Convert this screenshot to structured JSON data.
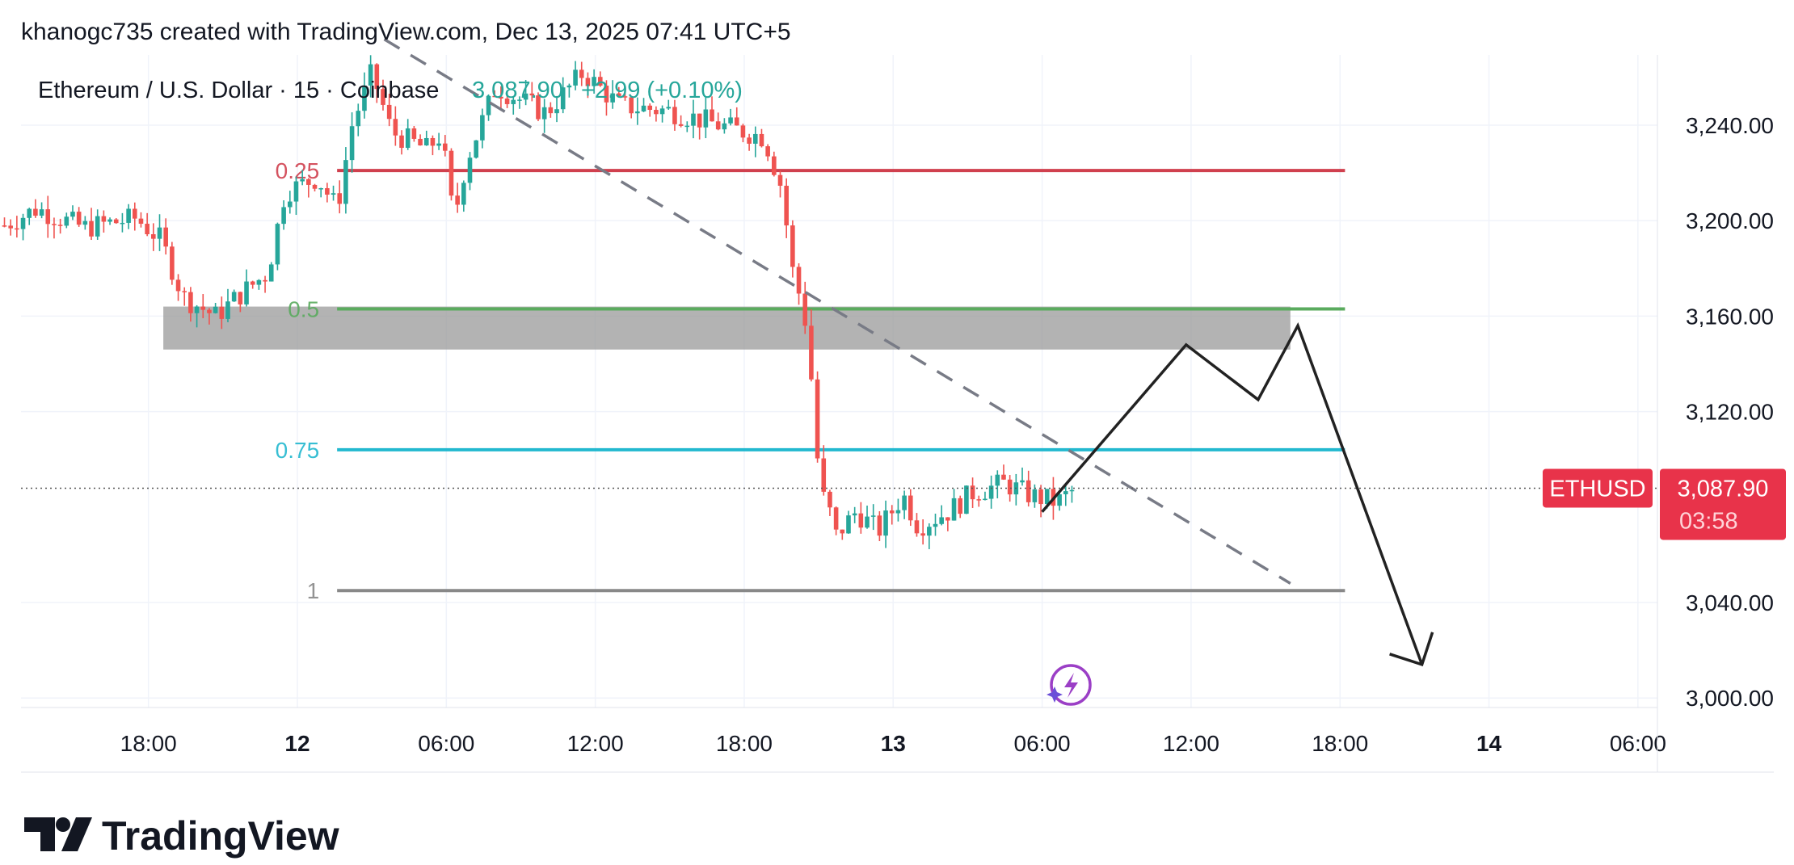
{
  "header": {
    "attribution": "khanogc735 created with TradingView.com, Dec 13, 2025 07:41 UTC+5"
  },
  "legend": {
    "symbol": "Ethereum / U.S. Dollar · 15 · Coinbase",
    "price": "3,087.90",
    "change": "+2.99 (+0.10%)"
  },
  "price_tag": {
    "symbol": "ETHUSD",
    "price": "3,087.90",
    "countdown": "03:58"
  },
  "footer": {
    "brand": "TradingView"
  },
  "colors": {
    "up": "#26a69a",
    "down": "#ef5350",
    "fib_025": "#d0404e",
    "fib_05": "#5aab5e",
    "fib_075": "#22b8cf",
    "fib_1": "#888888",
    "zone": "#999999",
    "tag": "#e8334a",
    "legend_green": "#26a69a"
  },
  "chart_data": {
    "type": "candlestick",
    "symbol": "Ethereum / U.S. Dollar",
    "interval": "15",
    "exchange": "Coinbase",
    "x_axis": {
      "ticks": [
        {
          "label": "18:00",
          "hour": -6,
          "bold": false
        },
        {
          "label": "12",
          "hour": 0,
          "bold": true
        },
        {
          "label": "06:00",
          "hour": 6,
          "bold": false
        },
        {
          "label": "12:00",
          "hour": 12,
          "bold": false
        },
        {
          "label": "18:00",
          "hour": 18,
          "bold": false
        },
        {
          "label": "13",
          "hour": 24,
          "bold": true
        },
        {
          "label": "06:00",
          "hour": 30,
          "bold": false
        },
        {
          "label": "12:00",
          "hour": 36,
          "bold": false
        },
        {
          "label": "18:00",
          "hour": 42,
          "bold": false
        },
        {
          "label": "14",
          "hour": 48,
          "bold": true
        },
        {
          "label": "06:00",
          "hour": 54,
          "bold": false
        }
      ]
    },
    "y_axis": {
      "ticks": [
        3000,
        3040,
        3120,
        3160,
        3200,
        3240
      ],
      "tick_labels": [
        "3,000.00",
        "3,040.00",
        "3,120.00",
        "3,160.00",
        "3,200.00",
        "3,240.00"
      ],
      "range": [
        2993,
        3275
      ]
    },
    "fib_levels": [
      {
        "label": "0.25",
        "price": 3221,
        "color_key": "fib_025"
      },
      {
        "label": "0.5",
        "price": 3163,
        "color_key": "fib_05"
      },
      {
        "label": "0.75",
        "price": 3104,
        "color_key": "fib_075"
      },
      {
        "label": "1",
        "price": 3045,
        "color_key": "fib_1"
      }
    ],
    "zone": {
      "price_top": 3164,
      "price_bottom": 3146,
      "hour_start": -5.4,
      "hour_end": 40
    },
    "trendline": {
      "from": {
        "hour": 3.5,
        "price": 3276
      },
      "to": {
        "hour": 40,
        "price": 3048
      },
      "style": "dashed"
    },
    "projection_path": [
      {
        "hour": 30,
        "price": 3078
      },
      {
        "hour": 35.8,
        "price": 3148
      },
      {
        "hour": 38.7,
        "price": 3125
      },
      {
        "hour": 40.3,
        "price": 3156
      },
      {
        "hour": 45.3,
        "price": 3014
      }
    ],
    "current_price": 3087.9,
    "anchors": [
      {
        "hour": -11.8,
        "price": 3198
      },
      {
        "hour": -10.5,
        "price": 3205
      },
      {
        "hour": -8.6,
        "price": 3197
      },
      {
        "hour": -6.5,
        "price": 3201
      },
      {
        "hour": -5.5,
        "price": 3192
      },
      {
        "hour": -4.6,
        "price": 3168
      },
      {
        "hour": -3.3,
        "price": 3160
      },
      {
        "hour": -2.2,
        "price": 3170
      },
      {
        "hour": -1.2,
        "price": 3178
      },
      {
        "hour": -0.5,
        "price": 3212
      },
      {
        "hour": 0.8,
        "price": 3218
      },
      {
        "hour": 1.6,
        "price": 3205
      },
      {
        "hour": 2.2,
        "price": 3240
      },
      {
        "hour": 3.0,
        "price": 3262
      },
      {
        "hour": 3.8,
        "price": 3237
      },
      {
        "hour": 5.2,
        "price": 3230
      },
      {
        "hour": 5.8,
        "price": 3236
      },
      {
        "hour": 6.3,
        "price": 3200
      },
      {
        "hour": 6.8,
        "price": 3225
      },
      {
        "hour": 8.0,
        "price": 3256
      },
      {
        "hour": 10.0,
        "price": 3245
      },
      {
        "hour": 11.5,
        "price": 3262
      },
      {
        "hour": 13.0,
        "price": 3248
      },
      {
        "hour": 15.0,
        "price": 3246
      },
      {
        "hour": 17.0,
        "price": 3240
      },
      {
        "hour": 18.8,
        "price": 3235
      },
      {
        "hour": 19.5,
        "price": 3214
      },
      {
        "hour": 20.0,
        "price": 3175
      },
      {
        "hour": 20.5,
        "price": 3162
      },
      {
        "hour": 21.1,
        "price": 3080
      },
      {
        "hour": 21.7,
        "price": 3068
      },
      {
        "hour": 22.5,
        "price": 3078
      },
      {
        "hour": 23.4,
        "price": 3070
      },
      {
        "hour": 24.4,
        "price": 3085
      },
      {
        "hour": 25.0,
        "price": 3072
      },
      {
        "hour": 26.2,
        "price": 3078
      },
      {
        "hour": 27.2,
        "price": 3086
      },
      {
        "hour": 28.5,
        "price": 3090
      },
      {
        "hour": 29.5,
        "price": 3085
      },
      {
        "hour": 30.6,
        "price": 3082
      },
      {
        "hour": 31.4,
        "price": 3088
      }
    ]
  }
}
